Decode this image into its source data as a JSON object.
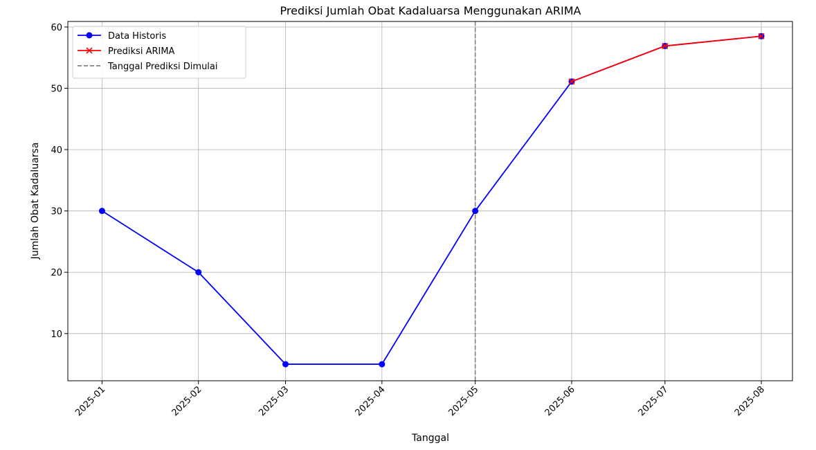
{
  "chart_data": {
    "type": "line",
    "title": "Prediksi Jumlah Obat Kadaluarsa Menggunakan ARIMA",
    "xlabel": "Tanggal",
    "ylabel": "Jumlah Obat Kadaluarsa",
    "x_ticks": [
      "2025-01",
      "2025-02",
      "2025-03",
      "2025-04",
      "2025-05",
      "2025-06",
      "2025-07",
      "2025-08"
    ],
    "y_ticks": [
      10,
      20,
      30,
      40,
      50,
      60
    ],
    "ylim": [
      2.3,
      60.9
    ],
    "xlim": [
      "2024-12-21",
      "2025-08-11"
    ],
    "grid": true,
    "legend_position": "top-left",
    "series": [
      {
        "name": "Data Historis",
        "color": "#0000ff",
        "marker": "circle",
        "x": [
          "2025-01-01",
          "2025-02-01",
          "2025-03-01",
          "2025-04-01",
          "2025-05-01",
          "2025-06-01",
          "2025-07-01",
          "2025-08-01"
        ],
        "values": [
          30,
          20,
          5,
          5,
          30,
          51.1,
          56.9,
          58.5
        ]
      },
      {
        "name": "Prediksi ARIMA",
        "color": "#ff0000",
        "marker": "x",
        "x": [
          "2025-06-01",
          "2025-07-01",
          "2025-08-01"
        ],
        "values": [
          51.1,
          56.9,
          58.5
        ]
      }
    ],
    "vlines": [
      {
        "name": "Tanggal Prediksi Dimulai",
        "x": "2025-05-01",
        "color": "#808080",
        "style": "dashed"
      }
    ]
  }
}
